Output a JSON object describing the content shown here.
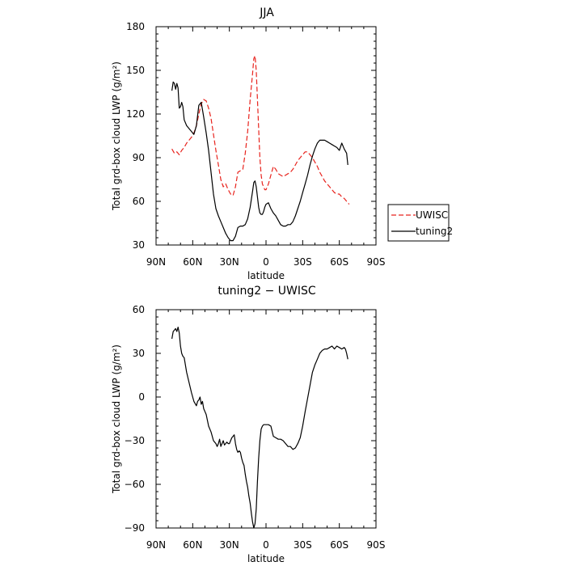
{
  "chart_data": [
    {
      "type": "line",
      "title": "JJA",
      "xlabel": "latitude",
      "ylabel": "Total grd-box cloud LWP (g/m²)",
      "xlim": [
        90,
        -90
      ],
      "ylim": [
        30,
        180
      ],
      "x_ticks": [
        90,
        60,
        30,
        0,
        -30,
        -60,
        -90
      ],
      "x_tick_labels": [
        "90N",
        "60N",
        "30N",
        "0",
        "30S",
        "60S",
        "90S"
      ],
      "y_ticks": [
        30,
        60,
        90,
        120,
        150,
        180
      ],
      "y_tick_labels": [
        "30",
        "60",
        "90",
        "120",
        "150",
        "180"
      ],
      "legend_position": "right",
      "series": [
        {
          "name": "UWISC",
          "color": "#e8231d",
          "dash": "dashed",
          "x": [
            77,
            75,
            73,
            71,
            69,
            67,
            65,
            63,
            61,
            59,
            57,
            55,
            53,
            51,
            49,
            47,
            45,
            43,
            41,
            39,
            37,
            35,
            33,
            31,
            29,
            27,
            25,
            23,
            21,
            19,
            17,
            15,
            13,
            11,
            10,
            9,
            8,
            7,
            6,
            5,
            4,
            3,
            2,
            1,
            0,
            -2,
            -4,
            -6,
            -8,
            -10,
            -12,
            -14,
            -16,
            -18,
            -20,
            -22,
            -24,
            -26,
            -28,
            -30,
            -32,
            -34,
            -36,
            -38,
            -40,
            -42,
            -44,
            -46,
            -48,
            -50,
            -52,
            -54,
            -56,
            -58,
            -60,
            -62,
            -64,
            -66,
            -68
          ],
          "y": [
            96,
            93,
            94,
            92,
            95,
            97,
            100,
            102,
            104,
            107,
            112,
            120,
            127,
            130,
            129,
            124,
            117,
            106,
            95,
            85,
            75,
            70,
            72,
            68,
            65,
            64,
            70,
            80,
            81,
            82,
            93,
            108,
            130,
            148,
            158,
            160,
            150,
            130,
            110,
            90,
            78,
            72,
            70,
            68,
            68,
            72,
            78,
            84,
            82,
            79,
            78,
            77,
            78,
            79,
            80,
            82,
            85,
            88,
            90,
            92,
            94,
            94,
            92,
            90,
            87,
            84,
            80,
            77,
            74,
            72,
            70,
            68,
            66,
            65,
            65,
            63,
            62,
            60,
            58
          ]
        },
        {
          "name": "tuning2",
          "color": "#000000",
          "dash": "solid",
          "x": [
            77,
            76,
            75,
            74,
            73,
            72,
            71,
            70,
            69,
            68,
            67,
            65,
            63,
            61,
            59,
            57,
            55,
            53,
            51,
            49,
            47,
            45,
            43,
            41,
            39,
            37,
            35,
            33,
            31,
            29,
            27,
            25,
            23,
            21,
            19,
            17,
            15,
            13,
            11,
            10,
            9,
            8,
            7,
            6,
            5,
            4,
            3,
            2,
            1,
            0,
            -2,
            -4,
            -6,
            -8,
            -10,
            -12,
            -14,
            -16,
            -18,
            -20,
            -22,
            -24,
            -26,
            -28,
            -30,
            -32,
            -34,
            -36,
            -38,
            -40,
            -42,
            -44,
            -46,
            -48,
            -50,
            -52,
            -54,
            -56,
            -58,
            -60,
            -62,
            -64,
            -66,
            -67
          ],
          "y": [
            136,
            142,
            141,
            137,
            141,
            138,
            124,
            125,
            128,
            125,
            116,
            112,
            110,
            108,
            106,
            112,
            126,
            128,
            118,
            107,
            95,
            80,
            65,
            55,
            50,
            46,
            42,
            38,
            35,
            33,
            33,
            36,
            42,
            43,
            43,
            44,
            48,
            56,
            67,
            73,
            74,
            70,
            63,
            56,
            52,
            51,
            51,
            53,
            56,
            58,
            59,
            55,
            52,
            50,
            47,
            44,
            43,
            43,
            44,
            44,
            46,
            50,
            55,
            60,
            66,
            72,
            78,
            85,
            91,
            96,
            100,
            102,
            102,
            102,
            101,
            100,
            99,
            98,
            97,
            95,
            100,
            96,
            93,
            85
          ]
        }
      ]
    },
    {
      "type": "line",
      "title": "tuning2 − UWISC",
      "xlabel": "latitude",
      "ylabel": "Total grd-box cloud LWP (g/m²)",
      "xlim": [
        90,
        -90
      ],
      "ylim": [
        -90,
        60
      ],
      "x_ticks": [
        90,
        60,
        30,
        0,
        -30,
        -60,
        -90
      ],
      "x_tick_labels": [
        "90N",
        "60N",
        "30N",
        "0",
        "30S",
        "60S",
        "90S"
      ],
      "y_ticks": [
        -90,
        -60,
        -30,
        0,
        30,
        60
      ],
      "y_tick_labels": [
        "−90",
        "−60",
        "−30",
        "0",
        "30",
        "60"
      ],
      "series": [
        {
          "color": "#000000",
          "dash": "solid",
          "x": [
            77,
            76,
            75,
            74,
            73,
            72,
            71,
            70,
            69,
            68,
            67,
            65,
            63,
            61,
            59,
            57,
            56,
            55,
            54,
            53,
            52,
            51,
            49,
            47,
            45,
            43,
            41,
            40,
            39,
            38,
            37,
            36,
            35,
            34,
            33,
            32,
            31,
            30,
            29,
            28,
            27,
            26,
            25,
            24,
            23,
            22,
            21,
            20,
            19,
            18,
            17,
            16,
            15,
            14,
            13,
            12,
            11,
            10,
            9,
            8,
            7,
            6,
            5,
            4,
            3,
            2,
            1,
            0,
            -2,
            -4,
            -6,
            -8,
            -10,
            -12,
            -14,
            -16,
            -18,
            -20,
            -22,
            -24,
            -26,
            -28,
            -30,
            -32,
            -34,
            -36,
            -38,
            -40,
            -42,
            -44,
            -46,
            -48,
            -50,
            -52,
            -54,
            -56,
            -58,
            -60,
            -62,
            -64,
            -65,
            -66,
            -67
          ],
          "y": [
            40,
            45,
            46,
            47,
            45,
            48,
            44,
            35,
            30,
            28,
            27,
            17,
            10,
            3,
            -3,
            -6,
            -3,
            -2,
            0,
            -5,
            -3,
            -8,
            -12,
            -20,
            -24,
            -30,
            -32,
            -34,
            -32,
            -29,
            -34,
            -32,
            -30,
            -33,
            -32,
            -31,
            -32,
            -32,
            -30,
            -28,
            -27,
            -26,
            -32,
            -36,
            -38,
            -37,
            -38,
            -42,
            -45,
            -47,
            -53,
            -58,
            -62,
            -68,
            -73,
            -80,
            -86,
            -90,
            -87,
            -77,
            -58,
            -42,
            -30,
            -22,
            -20,
            -19,
            -19,
            -19,
            -19,
            -20,
            -27,
            -28,
            -29,
            -29,
            -30,
            -32,
            -34,
            -34,
            -36,
            -35,
            -32,
            -28,
            -20,
            -10,
            -1,
            8,
            17,
            22,
            26,
            30,
            32,
            33,
            33,
            34,
            35,
            33,
            35,
            34,
            33,
            34,
            33,
            30,
            26
          ]
        }
      ]
    }
  ]
}
